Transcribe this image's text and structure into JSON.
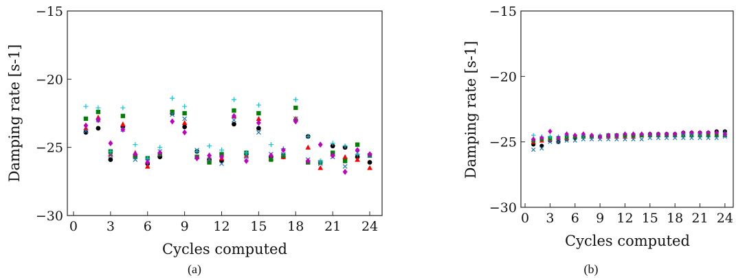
{
  "colors": {
    "black": "#000000",
    "red": "#ff0000",
    "green": "#008000",
    "magenta": "#bf00bf",
    "blue_x": "#1f77b4",
    "cyan_plus": "#17becf"
  },
  "chart_data": [
    {
      "type": "scatter",
      "caption": "(a)",
      "xlabel": "Cycles computed",
      "ylabel": "Damping rate [s-1]",
      "xlim": [
        -0.5,
        25
      ],
      "ylim": [
        -30,
        -15
      ],
      "xticks": [
        0,
        3,
        6,
        9,
        12,
        15,
        18,
        21,
        24
      ],
      "yticks": [
        -30,
        -25,
        -20,
        -15
      ],
      "xtick_labels": [
        "0",
        "3",
        "6",
        "9",
        "12",
        "15",
        "18",
        "21",
        "24"
      ],
      "ytick_labels": [
        "−30",
        "−25",
        "−20",
        "−15"
      ],
      "grid": false,
      "x": [
        1,
        2,
        3,
        4,
        5,
        6,
        7,
        8,
        9,
        10,
        11,
        12,
        13,
        14,
        15,
        16,
        17,
        18,
        19,
        20,
        21,
        22,
        23,
        24
      ],
      "series": [
        {
          "marker": "circle",
          "color": "#000000",
          "values": [
            -23.9,
            -23.6,
            -25.9,
            -23.5,
            -25.7,
            -26.2,
            -25.7,
            -22.5,
            -23.5,
            -25.3,
            -25.9,
            -26.0,
            -23.3,
            -25.5,
            -23.6,
            -25.7,
            -25.7,
            -23.0,
            -24.2,
            -26.1,
            -24.9,
            -25.0,
            -25.7,
            -26.1
          ]
        },
        {
          "marker": "triangle",
          "color": "#ff0000",
          "values": [
            -23.6,
            -22.8,
            -25.5,
            -23.3,
            -25.4,
            -26.4,
            -25.5,
            -22.4,
            -23.2,
            -25.7,
            -25.9,
            -25.8,
            -22.7,
            -25.6,
            -22.9,
            -25.8,
            -25.7,
            -22.9,
            -25.0,
            -26.5,
            -25.5,
            -25.7,
            -25.9,
            -26.5
          ]
        },
        {
          "marker": "square",
          "color": "#008000",
          "values": [
            -22.9,
            -22.4,
            -25.3,
            -22.7,
            -25.7,
            -25.8,
            -25.5,
            -22.4,
            -22.5,
            -25.7,
            -26.1,
            -25.5,
            -22.3,
            -25.4,
            -22.5,
            -25.9,
            -25.6,
            -22.1,
            -26.1,
            -26.1,
            -25.4,
            -26.0,
            -24.8,
            -25.6
          ]
        },
        {
          "marker": "x",
          "color": "#1f77b4",
          "values": [
            -23.8,
            -23.0,
            -25.6,
            -23.7,
            -25.9,
            -26.0,
            -25.3,
            -22.6,
            -22.9,
            -25.2,
            -25.9,
            -26.2,
            -23.0,
            -25.7,
            -23.9,
            -25.5,
            -25.5,
            -22.9,
            -25.9,
            -26.2,
            -25.7,
            -26.4,
            -25.4,
            -25.6
          ]
        },
        {
          "marker": "plus",
          "color": "#17becf",
          "values": [
            -22.0,
            -22.1,
            -25.3,
            -22.1,
            -24.8,
            -25.8,
            -25.0,
            -21.4,
            -22.0,
            -25.3,
            -24.9,
            -25.2,
            -21.5,
            -25.4,
            -21.9,
            -24.8,
            -25.1,
            -21.5,
            -24.2,
            -26.0,
            -24.7,
            -24.9,
            -25.5,
            -25.5
          ]
        },
        {
          "marker": "diamond",
          "color": "#bf00bf",
          "values": [
            -23.4,
            -23.0,
            -24.7,
            -23.7,
            -25.5,
            -26.1,
            -25.4,
            -23.1,
            -23.9,
            -25.8,
            -25.6,
            -25.7,
            -22.7,
            -26.0,
            -23.2,
            -25.6,
            -25.2,
            -23.1,
            -26.0,
            -24.8,
            -25.6,
            -26.8,
            -25.2,
            -25.5
          ]
        }
      ]
    },
    {
      "type": "scatter",
      "caption": "(b)",
      "xlabel": "Cycles computed",
      "ylabel": "Damping rate [s-1]",
      "xlim": [
        -0.5,
        25
      ],
      "ylim": [
        -30,
        -15
      ],
      "xticks": [
        0,
        3,
        6,
        9,
        12,
        15,
        18,
        21,
        24
      ],
      "yticks": [
        -30,
        -25,
        -20,
        -15
      ],
      "xtick_labels": [
        "0",
        "3",
        "6",
        "9",
        "12",
        "15",
        "18",
        "21",
        "24"
      ],
      "ytick_labels": [
        "−30",
        "−25",
        "−20",
        "−15"
      ],
      "grid": false,
      "x": [
        1,
        2,
        3,
        4,
        5,
        6,
        7,
        8,
        9,
        10,
        11,
        12,
        13,
        14,
        15,
        16,
        17,
        18,
        19,
        20,
        21,
        22,
        23,
        24
      ],
      "series": [
        {
          "marker": "circle",
          "color": "#000000",
          "values": [
            -25.2,
            -25.3,
            -24.9,
            -25.0,
            -24.8,
            -24.7,
            -24.6,
            -24.6,
            -24.6,
            -24.6,
            -24.5,
            -24.5,
            -24.5,
            -24.5,
            -24.4,
            -24.4,
            -24.4,
            -24.4,
            -24.3,
            -24.3,
            -24.3,
            -24.3,
            -24.2,
            -24.2
          ]
        },
        {
          "marker": "triangle",
          "color": "#ff0000",
          "values": [
            -25.0,
            -24.9,
            -24.8,
            -24.7,
            -24.7,
            -24.6,
            -24.6,
            -24.6,
            -24.6,
            -24.6,
            -24.6,
            -24.6,
            -24.6,
            -24.5,
            -24.5,
            -24.5,
            -24.5,
            -24.5,
            -24.5,
            -24.5,
            -24.5,
            -24.5,
            -24.5,
            -24.5
          ]
        },
        {
          "marker": "square",
          "color": "#008000",
          "values": [
            -24.9,
            -24.8,
            -24.7,
            -24.7,
            -24.6,
            -24.6,
            -24.6,
            -24.6,
            -24.6,
            -24.5,
            -24.5,
            -24.5,
            -24.5,
            -24.5,
            -24.5,
            -24.5,
            -24.5,
            -24.5,
            -24.5,
            -24.5,
            -24.5,
            -24.5,
            -24.5,
            -24.5
          ]
        },
        {
          "marker": "x",
          "color": "#1f77b4",
          "values": [
            -25.6,
            -25.5,
            -25.0,
            -25.0,
            -24.9,
            -24.9,
            -24.8,
            -24.8,
            -24.8,
            -24.8,
            -24.8,
            -24.8,
            -24.8,
            -24.8,
            -24.7,
            -24.7,
            -24.7,
            -24.7,
            -24.7,
            -24.7,
            -24.7,
            -24.7,
            -24.7,
            -24.6
          ]
        },
        {
          "marker": "plus",
          "color": "#17becf",
          "values": [
            -24.5,
            -24.6,
            -24.6,
            -24.6,
            -24.5,
            -24.5,
            -24.5,
            -24.5,
            -24.5,
            -24.5,
            -24.5,
            -24.4,
            -24.4,
            -24.4,
            -24.4,
            -24.4,
            -24.4,
            -24.4,
            -24.4,
            -24.4,
            -24.4,
            -24.3,
            -24.3,
            -24.3
          ]
        },
        {
          "marker": "diamond",
          "color": "#bf00bf",
          "values": [
            -24.8,
            -24.7,
            -24.2,
            -24.7,
            -24.4,
            -24.5,
            -24.4,
            -24.5,
            -24.6,
            -24.5,
            -24.5,
            -24.4,
            -24.4,
            -24.4,
            -24.4,
            -24.4,
            -24.4,
            -24.4,
            -24.3,
            -24.3,
            -24.3,
            -24.3,
            -24.3,
            -24.4
          ]
        }
      ]
    }
  ]
}
